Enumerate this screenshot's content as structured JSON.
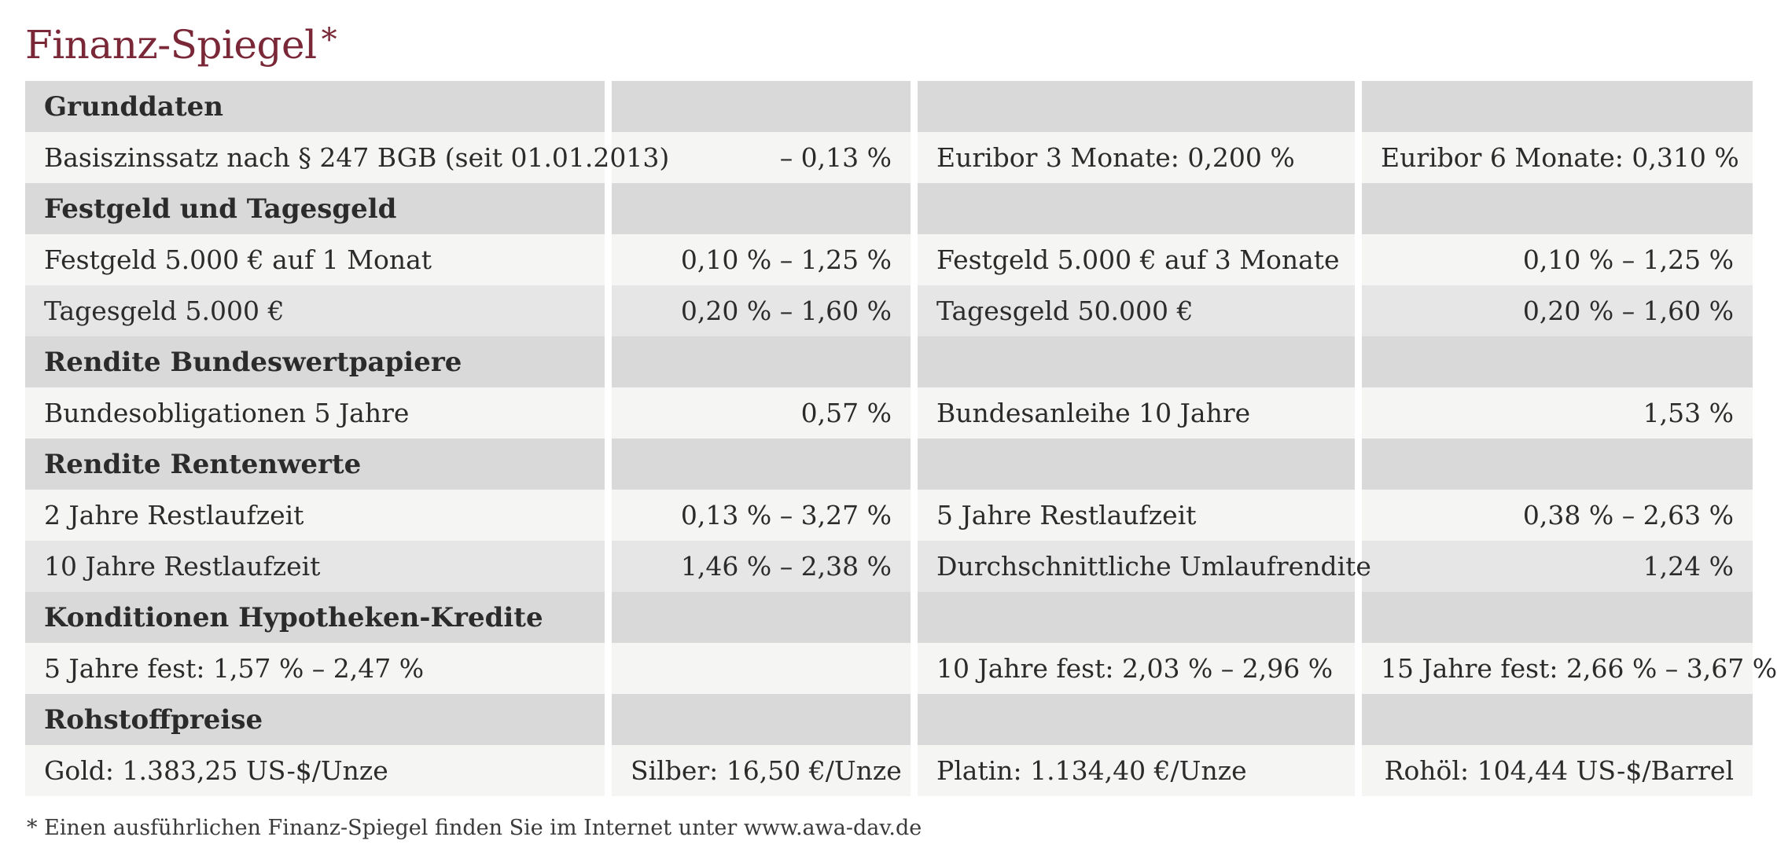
{
  "title": "Finanz-Spiegel",
  "title_mark": "*",
  "sections": [
    {
      "heading": "Grunddaten",
      "rows": [
        [
          "Basiszinssatz nach § 247 BGB (seit 01.01.2013)",
          "– 0,13 %",
          "Euribor 3 Monate: 0,200 %",
          "Euribor 6 Monate: 0,310 %"
        ]
      ]
    },
    {
      "heading": "Festgeld und Tagesgeld",
      "rows": [
        [
          "Festgeld 5.000 € auf 1 Monat",
          "0,10 % – 1,25 %",
          "Festgeld 5.000 € auf 3 Monate",
          "0,10 % – 1,25 %"
        ],
        [
          "Tagesgeld 5.000 €",
          "0,20 % – 1,60 %",
          "Tagesgeld 50.000 €",
          "0,20 % – 1,60 %"
        ]
      ]
    },
    {
      "heading": "Rendite Bundeswertpapiere",
      "rows": [
        [
          "Bundesobligationen 5 Jahre",
          "0,57 %",
          "Bundesanleihe 10 Jahre",
          "1,53 %"
        ]
      ]
    },
    {
      "heading": "Rendite Rentenwerte",
      "rows": [
        [
          "2 Jahre Restlaufzeit",
          "0,13 % – 3,27 %",
          "5 Jahre Restlaufzeit",
          "0,38 % – 2,63 %"
        ],
        [
          "10 Jahre Restlaufzeit",
          "1,46 % – 2,38 %",
          "Durchschnittliche Umlaufrendite",
          "1,24 %"
        ]
      ]
    },
    {
      "heading": "Konditionen Hypotheken-Kredite",
      "rows": [
        [
          "5 Jahre fest: 1,57 % – 2,47 %",
          "",
          "10 Jahre fest: 2,03 % – 2,96 %",
          "15 Jahre fest: 2,66 % – 3,67 %"
        ]
      ]
    },
    {
      "heading": "Rohstoffpreise",
      "rows": [
        [
          "Gold: 1.383,25 US-$/Unze",
          "Silber: 16,50 €/Unze",
          "Platin: 1.134,40 €/Unze",
          "Rohöl: 104,44 US-$/Barrel"
        ]
      ]
    }
  ],
  "footnote": "* Einen ausführlichen Finanz-Spiegel finden Sie im Internet unter www.awa-dav.de"
}
